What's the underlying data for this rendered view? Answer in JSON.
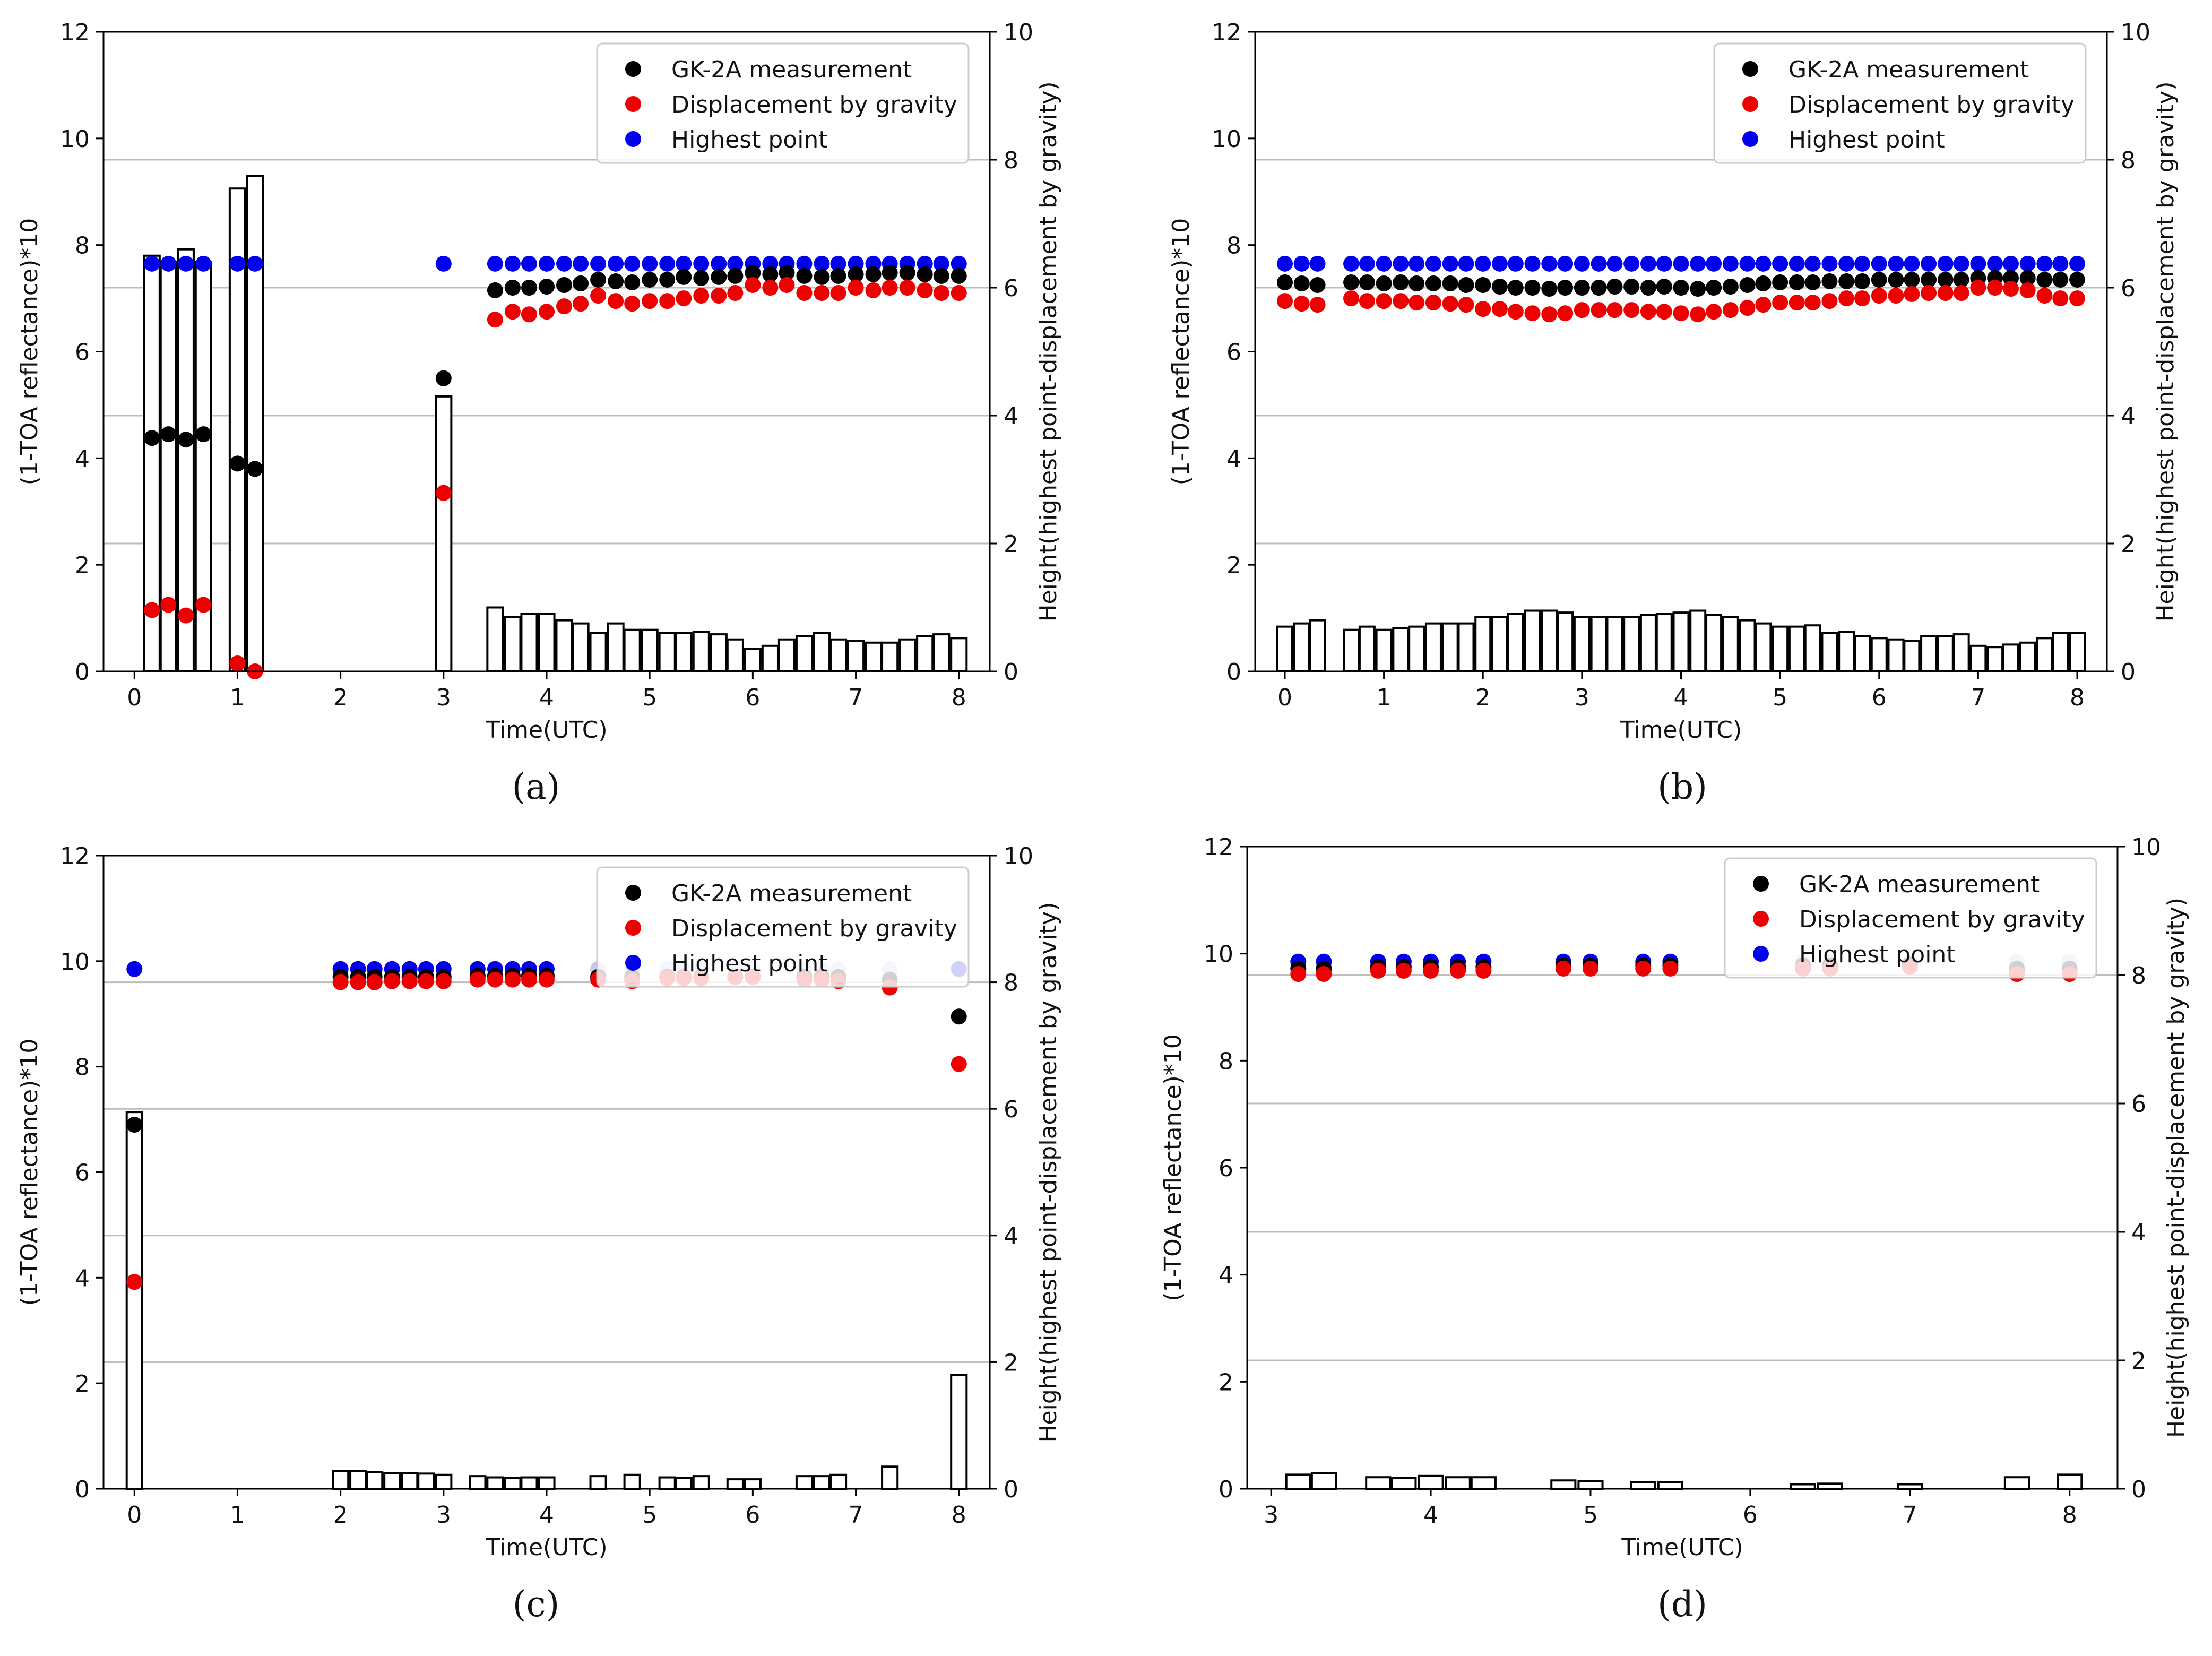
{
  "colors": {
    "measurement": "#000000",
    "gravity": "#ee0000",
    "highest": "#0000ee",
    "highest_faded": "#c8c8ee",
    "grid": "#bdbdbd",
    "bar_edge": "#000000",
    "bar_fill": "#ffffff"
  },
  "chart_data": [
    {
      "type": "scatter",
      "panel": "a",
      "caption": "(a)",
      "xlabel": "Time(UTC)",
      "ylabel_left": "(1-TOA reflectance)*10",
      "ylabel_right": "Height(highest point-displacement by gravity)",
      "xlim": [
        -0.3,
        8.3
      ],
      "ylim_left": [
        0,
        12
      ],
      "ylim_right": [
        0,
        10
      ],
      "xticks": [
        0,
        1,
        2,
        3,
        4,
        5,
        6,
        7,
        8
      ],
      "yticks_left": [
        0,
        2,
        4,
        6,
        8,
        10,
        12
      ],
      "yticks_right": [
        0,
        2,
        4,
        6,
        8,
        10
      ],
      "grid_right": [
        2,
        4,
        6,
        8
      ],
      "legend": {
        "position": "top-right",
        "entries": [
          "GK-2A measurement",
          "Displacement by gravity",
          "Highest point"
        ]
      },
      "x": [
        0.17,
        0.33,
        0.5,
        0.67,
        1.0,
        1.17,
        3.0,
        3.5,
        3.67,
        3.83,
        4.0,
        4.17,
        4.33,
        4.5,
        4.67,
        4.83,
        5.0,
        5.17,
        5.33,
        5.5,
        5.67,
        5.83,
        6.0,
        6.17,
        6.33,
        6.5,
        6.67,
        6.83,
        7.0,
        7.17,
        7.33,
        7.5,
        7.67,
        7.83,
        8.0
      ],
      "series": [
        {
          "name": "GK-2A measurement",
          "values": [
            4.38,
            4.45,
            4.35,
            4.45,
            3.9,
            3.8,
            5.5,
            7.15,
            7.2,
            7.2,
            7.22,
            7.25,
            7.28,
            7.35,
            7.32,
            7.3,
            7.35,
            7.35,
            7.4,
            7.38,
            7.4,
            7.42,
            7.48,
            7.45,
            7.48,
            7.42,
            7.4,
            7.42,
            7.45,
            7.45,
            7.48,
            7.48,
            7.45,
            7.42,
            7.42
          ]
        },
        {
          "name": "Displacement by gravity",
          "values": [
            1.15,
            1.25,
            1.05,
            1.25,
            0.15,
            0.0,
            3.35,
            6.6,
            6.75,
            6.7,
            6.75,
            6.85,
            6.9,
            7.05,
            6.95,
            6.9,
            6.95,
            6.95,
            7.0,
            7.05,
            7.05,
            7.1,
            7.25,
            7.2,
            7.25,
            7.1,
            7.1,
            7.1,
            7.2,
            7.15,
            7.2,
            7.2,
            7.15,
            7.1,
            7.1
          ]
        },
        {
          "name": "Highest point",
          "values": [
            7.65,
            7.65,
            7.65,
            7.65,
            7.65,
            7.65,
            7.65,
            7.65,
            7.65,
            7.65,
            7.65,
            7.65,
            7.65,
            7.65,
            7.65,
            7.65,
            7.65,
            7.65,
            7.65,
            7.65,
            7.65,
            7.65,
            7.65,
            7.65,
            7.65,
            7.65,
            7.65,
            7.65,
            7.65,
            7.65,
            7.65,
            7.65,
            7.65,
            7.65,
            7.65
          ]
        }
      ],
      "bars_right": [
        6.5,
        6.4,
        6.6,
        6.4,
        7.55,
        7.75,
        4.3,
        1.0,
        0.85,
        0.9,
        0.9,
        0.8,
        0.75,
        0.6,
        0.75,
        0.65,
        0.65,
        0.6,
        0.6,
        0.62,
        0.58,
        0.5,
        0.35,
        0.4,
        0.5,
        0.55,
        0.6,
        0.5,
        0.48,
        0.45,
        0.45,
        0.5,
        0.55,
        0.58,
        0.52
      ]
    },
    {
      "type": "scatter",
      "panel": "b",
      "caption": "(b)",
      "xlabel": "Time(UTC)",
      "ylabel_left": "(1-TOA reflectance)*10",
      "ylabel_right": "Height(highest point-displacement by gravity)",
      "xlim": [
        -0.3,
        8.3
      ],
      "ylim_left": [
        0,
        12
      ],
      "ylim_right": [
        0,
        10
      ],
      "xticks": [
        0,
        1,
        2,
        3,
        4,
        5,
        6,
        7,
        8
      ],
      "yticks_left": [
        0,
        2,
        4,
        6,
        8,
        10,
        12
      ],
      "yticks_right": [
        0,
        2,
        4,
        6,
        8,
        10
      ],
      "grid_right": [
        2,
        4,
        6,
        8
      ],
      "legend": {
        "position": "top-right",
        "entries": [
          "GK-2A measurement",
          "Displacement by gravity",
          "Highest point"
        ]
      },
      "x": [
        0.0,
        0.17,
        0.33,
        0.67,
        0.83,
        1.0,
        1.17,
        1.33,
        1.5,
        1.67,
        1.83,
        2.0,
        2.17,
        2.33,
        2.5,
        2.67,
        2.83,
        3.0,
        3.17,
        3.33,
        3.5,
        3.67,
        3.83,
        4.0,
        4.17,
        4.33,
        4.5,
        4.67,
        4.83,
        5.0,
        5.17,
        5.33,
        5.5,
        5.67,
        5.83,
        6.0,
        6.17,
        6.33,
        6.5,
        6.67,
        6.83,
        7.0,
        7.17,
        7.33,
        7.5,
        7.67,
        7.83,
        8.0
      ],
      "series": [
        {
          "name": "GK-2A measurement",
          "values": [
            7.3,
            7.28,
            7.25,
            7.3,
            7.3,
            7.28,
            7.3,
            7.28,
            7.28,
            7.28,
            7.25,
            7.25,
            7.22,
            7.2,
            7.2,
            7.18,
            7.2,
            7.2,
            7.2,
            7.22,
            7.22,
            7.2,
            7.22,
            7.2,
            7.18,
            7.2,
            7.22,
            7.25,
            7.28,
            7.3,
            7.3,
            7.3,
            7.32,
            7.32,
            7.32,
            7.35,
            7.35,
            7.35,
            7.35,
            7.35,
            7.35,
            7.38,
            7.38,
            7.38,
            7.38,
            7.35,
            7.35,
            7.35
          ]
        },
        {
          "name": "Displacement by gravity",
          "values": [
            6.95,
            6.9,
            6.88,
            7.0,
            6.95,
            6.95,
            6.95,
            6.92,
            6.92,
            6.9,
            6.88,
            6.8,
            6.8,
            6.75,
            6.72,
            6.7,
            6.72,
            6.78,
            6.78,
            6.78,
            6.78,
            6.75,
            6.75,
            6.72,
            6.7,
            6.75,
            6.78,
            6.82,
            6.88,
            6.92,
            6.92,
            6.92,
            6.95,
            7.0,
            7.0,
            7.05,
            7.05,
            7.08,
            7.1,
            7.1,
            7.1,
            7.2,
            7.2,
            7.18,
            7.15,
            7.05,
            7.0,
            7.0
          ]
        },
        {
          "name": "Highest point",
          "values": [
            7.65,
            7.65,
            7.65,
            7.65,
            7.65,
            7.65,
            7.65,
            7.65,
            7.65,
            7.65,
            7.65,
            7.65,
            7.65,
            7.65,
            7.65,
            7.65,
            7.65,
            7.65,
            7.65,
            7.65,
            7.65,
            7.65,
            7.65,
            7.65,
            7.65,
            7.65,
            7.65,
            7.65,
            7.65,
            7.65,
            7.65,
            7.65,
            7.65,
            7.65,
            7.65,
            7.65,
            7.65,
            7.65,
            7.65,
            7.65,
            7.65,
            7.65,
            7.65,
            7.65,
            7.65,
            7.65,
            7.65,
            7.65
          ]
        }
      ],
      "bars_right": [
        0.7,
        0.75,
        0.8,
        0.65,
        0.7,
        0.65,
        0.68,
        0.7,
        0.75,
        0.75,
        0.75,
        0.85,
        0.85,
        0.9,
        0.95,
        0.95,
        0.92,
        0.85,
        0.85,
        0.85,
        0.85,
        0.88,
        0.9,
        0.92,
        0.95,
        0.88,
        0.85,
        0.8,
        0.75,
        0.7,
        0.7,
        0.72,
        0.6,
        0.62,
        0.55,
        0.52,
        0.5,
        0.48,
        0.55,
        0.55,
        0.58,
        0.4,
        0.38,
        0.42,
        0.45,
        0.52,
        0.6,
        0.6
      ]
    },
    {
      "type": "scatter",
      "panel": "c",
      "caption": "(c)",
      "xlabel": "Time(UTC)",
      "ylabel_left": "(1-TOA reflectance)*10",
      "ylabel_right": "Height(highest point-displacement by gravity)",
      "xlim": [
        -0.3,
        8.3
      ],
      "ylim_left": [
        0,
        12
      ],
      "ylim_right": [
        0,
        10
      ],
      "xticks": [
        0,
        1,
        2,
        3,
        4,
        5,
        6,
        7,
        8
      ],
      "yticks_left": [
        0,
        2,
        4,
        6,
        8,
        10,
        12
      ],
      "yticks_right": [
        0,
        2,
        4,
        6,
        8,
        10
      ],
      "grid_right": [
        2,
        4,
        6,
        8
      ],
      "legend": {
        "position": "top-right",
        "entries": [
          "GK-2A measurement",
          "Displacement by gravity",
          "Highest point"
        ]
      },
      "x": [
        0.0,
        2.0,
        2.17,
        2.33,
        2.5,
        2.67,
        2.83,
        3.0,
        3.33,
        3.5,
        3.67,
        3.83,
        4.0,
        4.5,
        4.83,
        5.17,
        5.33,
        5.5,
        5.83,
        6.0,
        6.5,
        6.67,
        6.83,
        7.33,
        8.0
      ],
      "series": [
        {
          "name": "GK-2A measurement",
          "values": [
            6.9,
            9.7,
            9.7,
            9.7,
            9.7,
            9.7,
            9.7,
            9.7,
            9.72,
            9.72,
            9.72,
            9.72,
            9.72,
            9.7,
            9.7,
            9.7,
            9.7,
            9.7,
            9.7,
            9.7,
            9.7,
            9.7,
            9.7,
            9.65,
            8.95
          ]
        },
        {
          "name": "Displacement by gravity",
          "values": [
            3.92,
            9.6,
            9.6,
            9.6,
            9.62,
            9.62,
            9.62,
            9.62,
            9.65,
            9.65,
            9.65,
            9.65,
            9.65,
            9.65,
            9.62,
            9.68,
            9.68,
            9.68,
            9.7,
            9.7,
            9.65,
            9.65,
            9.62,
            9.5,
            8.05
          ]
        },
        {
          "name": "Highest point",
          "values": [
            9.85,
            9.85,
            9.85,
            9.85,
            9.85,
            9.85,
            9.85,
            9.85,
            9.85,
            9.85,
            9.85,
            9.85,
            9.85,
            9.85,
            9.85,
            9.85,
            9.85,
            9.85,
            9.85,
            9.85,
            9.85,
            9.85,
            9.85,
            9.85,
            9.85
          ]
        }
      ],
      "bars_right": [
        5.95,
        0.28,
        0.28,
        0.26,
        0.25,
        0.25,
        0.24,
        0.22,
        0.2,
        0.18,
        0.17,
        0.18,
        0.18,
        0.2,
        0.22,
        0.18,
        0.17,
        0.2,
        0.15,
        0.15,
        0.2,
        0.2,
        0.22,
        0.35,
        1.8
      ]
    },
    {
      "type": "scatter",
      "panel": "d",
      "caption": "(d)",
      "xlabel": "Time(UTC)",
      "ylabel_left": "(1-TOA reflectance)*10",
      "ylabel_right": "Height(highest point-displacement by gravity)",
      "xlim": [
        2.85,
        8.3
      ],
      "ylim_left": [
        0,
        12
      ],
      "ylim_right": [
        0,
        10
      ],
      "xticks": [
        3,
        4,
        5,
        6,
        7,
        8
      ],
      "yticks_left": [
        0,
        2,
        4,
        6,
        8,
        10,
        12
      ],
      "yticks_right": [
        0,
        2,
        4,
        6,
        8,
        10
      ],
      "grid_right": [
        2,
        4,
        6,
        8
      ],
      "legend": {
        "position": "top-right",
        "entries": [
          "GK-2A measurement",
          "Displacement by gravity",
          "Highest point"
        ]
      },
      "x": [
        3.17,
        3.33,
        3.67,
        3.83,
        4.0,
        4.17,
        4.33,
        4.83,
        5.0,
        5.33,
        5.5,
        6.33,
        6.5,
        7.0,
        7.67,
        8.0
      ],
      "series": [
        {
          "name": "GK-2A measurement",
          "values": [
            9.72,
            9.72,
            9.75,
            9.75,
            9.75,
            9.75,
            9.75,
            9.78,
            9.78,
            9.78,
            9.78,
            9.78,
            9.78,
            9.8,
            9.72,
            9.72
          ]
        },
        {
          "name": "Displacement by gravity",
          "values": [
            9.62,
            9.62,
            9.68,
            9.68,
            9.68,
            9.68,
            9.68,
            9.72,
            9.72,
            9.72,
            9.72,
            9.72,
            9.72,
            9.75,
            9.62,
            9.62
          ]
        },
        {
          "name": "Highest point",
          "values": [
            9.85,
            9.85,
            9.85,
            9.85,
            9.85,
            9.85,
            9.85,
            9.85,
            9.85,
            9.85,
            9.85,
            9.85,
            9.85,
            9.85,
            9.85,
            9.85
          ]
        }
      ],
      "bars_right": [
        0.22,
        0.24,
        0.18,
        0.17,
        0.2,
        0.18,
        0.18,
        0.13,
        0.12,
        0.1,
        0.1,
        0.07,
        0.08,
        0.07,
        0.18,
        0.22
      ],
      "faded_highest_from_x": 6.2
    }
  ]
}
